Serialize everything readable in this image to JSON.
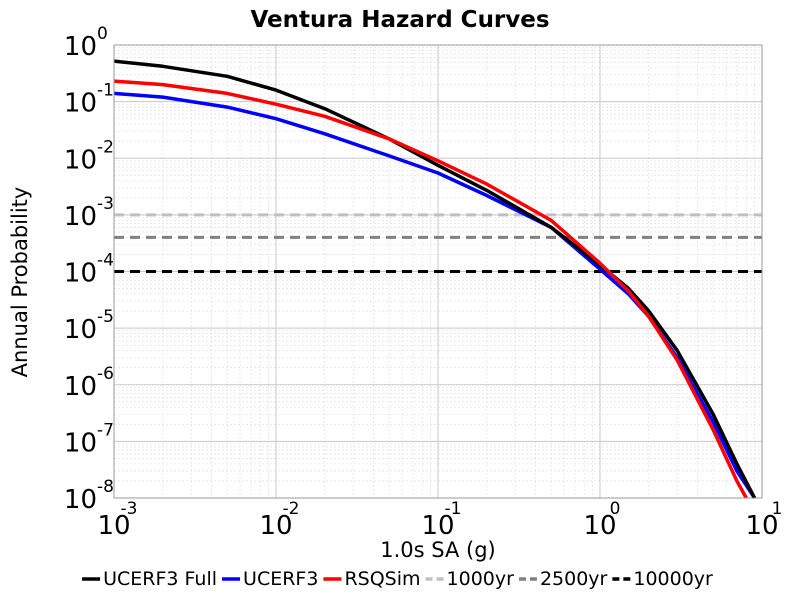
{
  "chart_data": {
    "type": "line",
    "title": "Ventura Hazard Curves",
    "xlabel": "1.0s SA (g)",
    "ylabel": "Annual Probability",
    "xscale": "log",
    "yscale": "log",
    "xlim": [
      0.001,
      10
    ],
    "ylim": [
      1e-08,
      1
    ],
    "x_tick_labels": [
      {
        "base": "10",
        "exp": "-3"
      },
      {
        "base": "10",
        "exp": "-2"
      },
      {
        "base": "10",
        "exp": "-1"
      },
      {
        "base": "10",
        "exp": "0"
      },
      {
        "base": "10",
        "exp": "1"
      }
    ],
    "y_tick_labels": [
      {
        "base": "10",
        "exp": "0"
      },
      {
        "base": "10",
        "exp": "-1"
      },
      {
        "base": "10",
        "exp": "-2"
      },
      {
        "base": "10",
        "exp": "-3"
      },
      {
        "base": "10",
        "exp": "-4"
      },
      {
        "base": "10",
        "exp": "-5"
      },
      {
        "base": "10",
        "exp": "-6"
      },
      {
        "base": "10",
        "exp": "-7"
      },
      {
        "base": "10",
        "exp": "-8"
      }
    ],
    "grid": true,
    "legend_position": "bottom",
    "series": [
      {
        "name": "UCERF3 Full",
        "color": "#000000",
        "style": "solid",
        "x": [
          0.001,
          0.002,
          0.005,
          0.01,
          0.02,
          0.05,
          0.1,
          0.2,
          0.5,
          1,
          1.5,
          2,
          3,
          5,
          7,
          9
        ],
        "y": [
          0.52,
          0.42,
          0.28,
          0.16,
          0.075,
          0.022,
          0.0075,
          0.0027,
          0.0006,
          0.00013,
          5e-05,
          2e-05,
          4e-06,
          3e-07,
          4e-08,
          1e-08
        ]
      },
      {
        "name": "UCERF3",
        "color": "#0000ff",
        "style": "solid",
        "x": [
          0.001,
          0.002,
          0.005,
          0.01,
          0.02,
          0.05,
          0.1,
          0.2,
          0.5,
          1,
          1.5,
          2,
          3,
          5,
          7,
          9
        ],
        "y": [
          0.14,
          0.12,
          0.08,
          0.05,
          0.027,
          0.011,
          0.0055,
          0.0022,
          0.0006,
          0.00011,
          4e-05,
          1.6e-05,
          3e-06,
          2.2e-07,
          3e-08,
          1e-08
        ]
      },
      {
        "name": "RSQSim",
        "color": "#ff0000",
        "style": "solid",
        "x": [
          0.001,
          0.002,
          0.005,
          0.01,
          0.02,
          0.05,
          0.1,
          0.2,
          0.5,
          1,
          1.5,
          2,
          3,
          5,
          7,
          8
        ],
        "y": [
          0.23,
          0.2,
          0.14,
          0.09,
          0.055,
          0.022,
          0.009,
          0.0035,
          0.0008,
          0.00014,
          4.5e-05,
          1.6e-05,
          2.7e-06,
          1.6e-07,
          2e-08,
          1e-08
        ]
      },
      {
        "name": "1000yr",
        "color": "#c0c0c0",
        "style": "dashed",
        "x": [
          0.001,
          10
        ],
        "y": [
          0.000999,
          0.000999
        ]
      },
      {
        "name": "2500yr",
        "color": "#808080",
        "style": "dashed",
        "x": [
          0.001,
          10
        ],
        "y": [
          0.0004,
          0.0004
        ]
      },
      {
        "name": "10000yr",
        "color": "#000000",
        "style": "dashed",
        "x": [
          0.001,
          10
        ],
        "y": [
          0.0001,
          0.0001
        ]
      }
    ]
  }
}
